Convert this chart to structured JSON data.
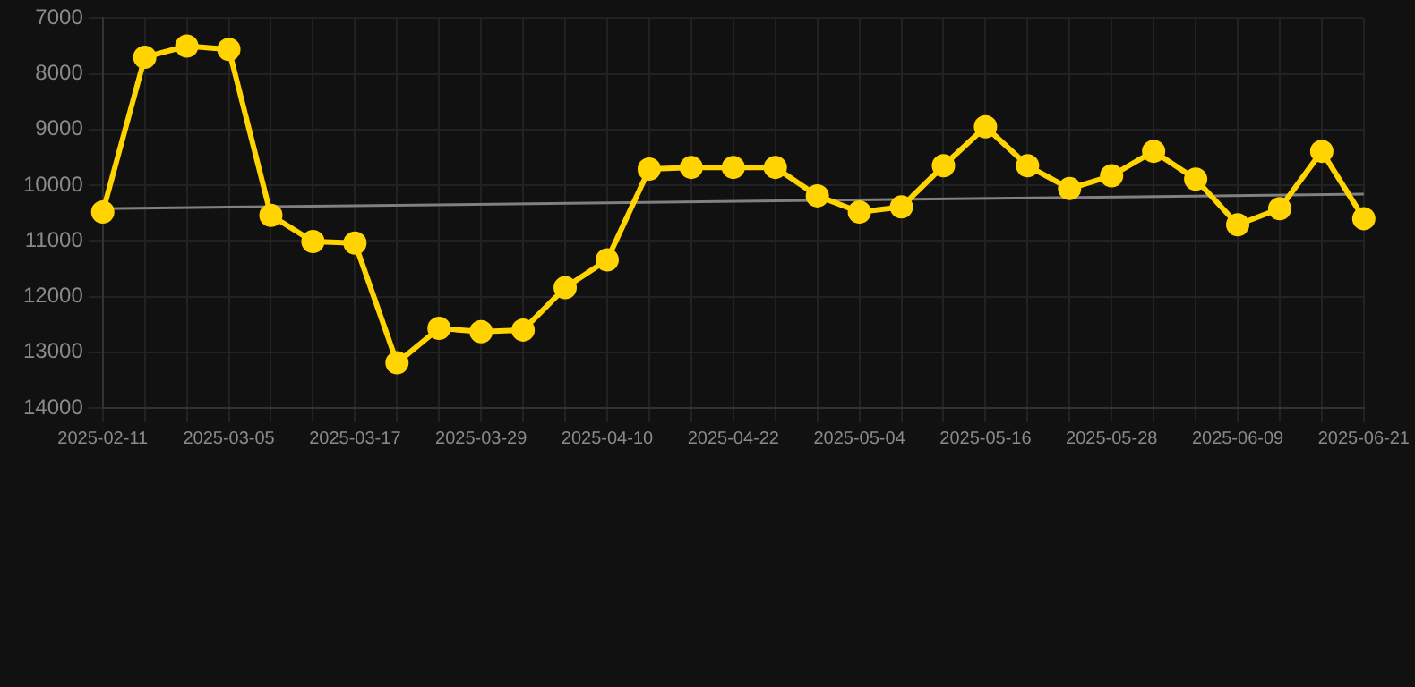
{
  "chart_data": {
    "type": "line",
    "categories": [
      "2025-02-11",
      null,
      null,
      "2025-03-05",
      null,
      null,
      "2025-03-17",
      null,
      null,
      "2025-03-29",
      null,
      null,
      "2025-04-10",
      null,
      null,
      "2025-04-22",
      null,
      null,
      "2025-05-04",
      null,
      null,
      "2025-05-16",
      null,
      null,
      "2025-05-28",
      null,
      null,
      "2025-06-09",
      null,
      null,
      "2025-06-21"
    ],
    "series": [
      {
        "color": "#ffd400",
        "values": [
          10480,
          7700,
          7500,
          7560,
          10540,
          11010,
          11040,
          13190,
          12570,
          12630,
          12600,
          11840,
          11340,
          9710,
          9680,
          9680,
          9680,
          10190,
          10480,
          10390,
          9650,
          8950,
          9650,
          10060,
          9830,
          9390,
          9890,
          10710,
          10420,
          9390,
          10600
        ]
      },
      {
        "type": "line",
        "color": "#808080",
        "values": [
          10420,
          null,
          null,
          null,
          null,
          null,
          null,
          null,
          null,
          null,
          null,
          null,
          null,
          null,
          null,
          null,
          null,
          null,
          null,
          null,
          null,
          null,
          null,
          null,
          null,
          null,
          null,
          null,
          null,
          null,
          10160
        ],
        "marker": "none"
      }
    ],
    "ylim": [
      14000,
      7000
    ],
    "yticks": [
      7000,
      8000,
      9000,
      10000,
      11000,
      12000,
      13000,
      14000
    ],
    "grid": true,
    "legend": false,
    "marker": "circle",
    "line_style": "solid"
  }
}
